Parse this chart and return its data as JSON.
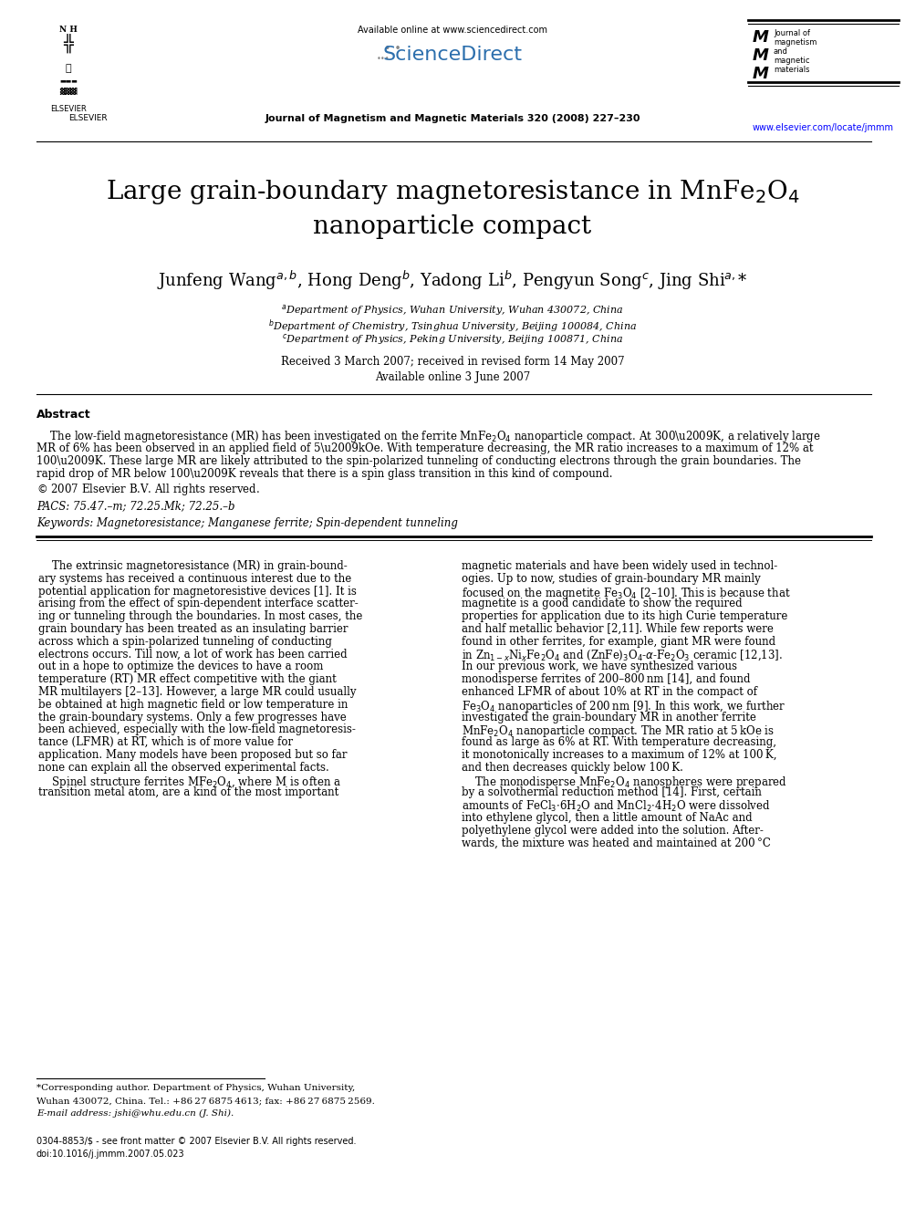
{
  "page_width": 9.92,
  "page_height": 13.23,
  "dpi": 100,
  "background_color": "#ffffff",
  "header_available": "Available online at www.sciencedirect.com",
  "header_journal": "Journal of Magnetism and Magnetic Materials 320 (2008) 227–230",
  "header_url": "www.elsevier.com/locate/jmmm",
  "elsevier_text": "ELSEVIER",
  "sciencedirect": "ScienceDirect",
  "jmm_lines": [
    "Journal of",
    "magnetism",
    "and",
    "magnetic",
    "materials"
  ],
  "title_line1": "Large grain-boundary magnetoresistance in MnFe$_2$O$_4$",
  "title_line2": "nanoparticle compact",
  "authors": "Junfeng Wang$^{a,b}$, Hong Deng$^b$, Yadong Li$^b$, Pengyun Song$^c$, Jing Shi$^{a,}$*",
  "aff1": "$^a$Department of Physics, Wuhan University, Wuhan 430072, China",
  "aff2": "$^b$Department of Chemistry, Tsinghua University, Beijing 100084, China",
  "aff3": "$^c$Department of Physics, Peking University, Beijing 100871, China",
  "date1": "Received 3 March 2007; received in revised form 14 May 2007",
  "date2": "Available online 3 June 2007",
  "abstract_heading": "Abstract",
  "abstract_body": "    The low-field magnetoresistance (MR) has been investigated on the ferrite MnFe$_2$O$_4$ nanoparticle compact. At 300 K, a relatively large\nMR of 6% has been observed in an applied field of 5 kOe. With temperature decreasing, the MR ratio increases to a maximum of 12% at\n100 K. These large MR are likely attributed to the spin-polarized tunneling of conducting electrons through the grain boundaries. The\nrapid drop of MR below 100 K reveals that there is a spin glass transition in this kind of compound.\n© 2007 Elsevier B.V. All rights reserved.",
  "pacs": "PACS: 75.47.–m; 72.25.Mk; 72.25.–b",
  "keywords": "Keywords: Magnetoresistance; Manganese ferrite; Spin-dependent tunneling",
  "col1_lines": [
    "    The extrinsic magnetoresistance (MR) in grain-bound-",
    "ary systems has received a continuous interest due to the",
    "potential application for magnetoresistive devices [1]. It is",
    "arising from the effect of spin-dependent interface scatter-",
    "ing or tunneling through the boundaries. In most cases, the",
    "grain boundary has been treated as an insulating barrier",
    "across which a spin-polarized tunneling of conducting",
    "electrons occurs. Till now, a lot of work has been carried",
    "out in a hope to optimize the devices to have a room",
    "temperature (RT) MR effect competitive with the giant",
    "MR multilayers [2–13]. However, a large MR could usually",
    "be obtained at high magnetic field or low temperature in",
    "the grain-boundary systems. Only a few progresses have",
    "been achieved, especially with the low-field magnetoresis-",
    "tance (LFMR) at RT, which is of more value for",
    "application. Many models have been proposed but so far",
    "none can explain all the observed experimental facts.",
    "    Spinel structure ferrites MFe$_2$O$_4$, where M is often a",
    "transition metal atom, are a kind of the most important"
  ],
  "col2_lines": [
    "magnetic materials and have been widely used in technol-",
    "ogies. Up to now, studies of grain-boundary MR mainly",
    "focused on the magnetite Fe$_3$O$_4$ [2–10]. This is because that",
    "magnetite is a good candidate to show the required",
    "properties for application due to its high Curie temperature",
    "and half metallic behavior [2,11]. While few reports were",
    "found in other ferrites, for example, giant MR were found",
    "in Zn$_{1-x}$Ni$_x$Fe$_2$O$_4$ and (ZnFe)$_3$O$_4$-$\\alpha$-Fe$_2$O$_3$ ceramic [12,13].",
    "In our previous work, we have synthesized various",
    "monodisperse ferrites of 200–800 nm [14], and found",
    "enhanced LFMR of about 10% at RT in the compact of",
    "Fe$_3$O$_4$ nanoparticles of 200 nm [9]. In this work, we further",
    "investigated the grain-boundary MR in another ferrite",
    "MnFe$_2$O$_4$ nanoparticle compact. The MR ratio at 5 kOe is",
    "found as large as 6% at RT. With temperature decreasing,",
    "it monotonically increases to a maximum of 12% at 100 K,",
    "and then decreases quickly below 100 K.",
    "    The monodisperse MnFe$_2$O$_4$ nanospheres were prepared",
    "by a solvothermal reduction method [14]. First, certain",
    "amounts of FeCl$_3$$\\cdot$6H$_2$O and MnCl$_2$$\\cdot$4H$_2$O were dissolved",
    "into ethylene glycol, then a little amount of NaAc and",
    "polyethylene glycol were added into the solution. After-",
    "wards, the mixture was heated and maintained at 200 °C"
  ],
  "footnote1": "*Corresponding author. Department of Physics, Wuhan University,",
  "footnote2": "Wuhan 430072, China. Tel.: +86 27 6875 4613; fax: +86 27 6875 2569.",
  "footnote3": "E-mail address: jshi@whu.edu.cn (J. Shi).",
  "bottom1": "0304-8853/$ - see front matter © 2007 Elsevier B.V. All rights reserved.",
  "bottom2": "doi:10.1016/j.jmmm.2007.05.023"
}
